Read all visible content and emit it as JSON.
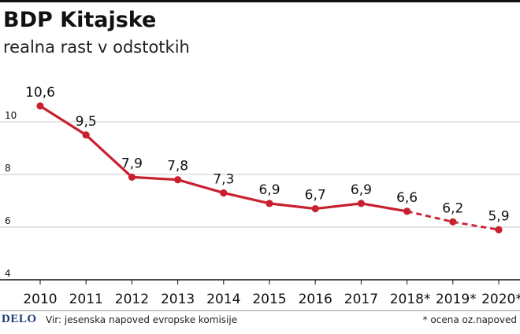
{
  "header": {
    "title": "BDP Kitajske",
    "subtitle": "realna rast v odstotkih"
  },
  "footer": {
    "logo": "DELO",
    "source": "Vir: jesenska napoved evropske komisije",
    "note": "* ocena oz.napoved"
  },
  "colors": {
    "line": "#c8202f",
    "grid": "#c8c8c8",
    "axis": "#111111",
    "text": "#111111"
  },
  "chart_data": {
    "type": "line",
    "title": "BDP Kitajske",
    "subtitle": "realna rast v odstotkih",
    "categories": [
      "2010",
      "2011",
      "2012",
      "2013",
      "2014",
      "2015",
      "2016",
      "2017",
      "2018*",
      "2019*",
      "2020*"
    ],
    "series": [
      {
        "values": [
          10.6,
          9.5,
          7.9,
          7.8,
          7.3,
          6.9,
          6.7,
          6.9,
          6.6,
          6.2,
          5.9
        ],
        "labels": [
          "10,6",
          "9,5",
          "7,9",
          "7,8",
          "7,3",
          "6,9",
          "6,7",
          "6,9",
          "6,6",
          "6,2",
          "5,9"
        ],
        "dashed_from_index": 8
      }
    ],
    "yticks": [
      4,
      6,
      8,
      10
    ],
    "ylim": [
      4,
      11.4
    ],
    "grid": true,
    "legend": "none"
  }
}
